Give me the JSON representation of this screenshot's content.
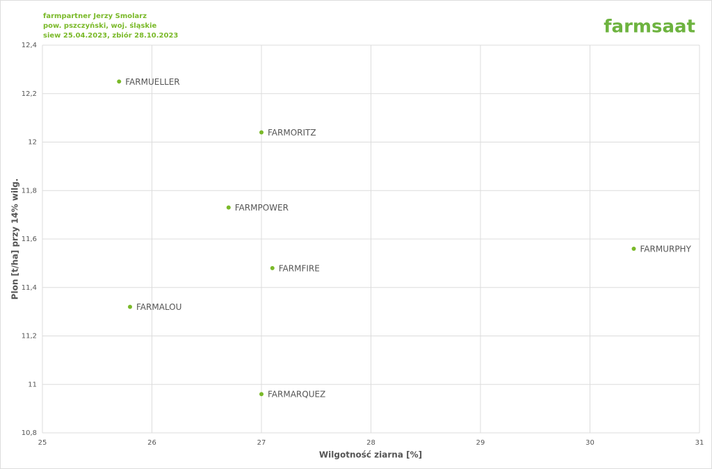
{
  "logo": "farmsaat",
  "chart_data": {
    "type": "scatter",
    "title_lines": [
      "farmpartner Jerzy Smolarz",
      "pow. pszczyński, woj. śląskie",
      "siew 25.04.2023, zbiór 28.10.2023"
    ],
    "x_label": "Wilgotność ziarna [%]",
    "y_label": "Plon [t/ha] przy 14% wilg.",
    "labels": [
      "FARMUELLER",
      "FARMORITZ",
      "FARMPOWER",
      "FARMURPHY",
      "FARMFIRE",
      "FARMALOU",
      "FARMARQUEZ"
    ],
    "x": [
      25.7,
      27.0,
      26.7,
      30.4,
      27.1,
      25.8,
      27.0
    ],
    "values": [
      12.25,
      12.04,
      11.73,
      11.56,
      11.48,
      11.32,
      10.96
    ],
    "color": "#7ab929",
    "xlim": [
      25,
      31
    ],
    "xticks": [
      25,
      26,
      27,
      28,
      29,
      30,
      31
    ],
    "ylim": [
      10.8,
      12.4
    ],
    "yticks": [
      {
        "value": 10.8,
        "label": "10,8"
      },
      11,
      {
        "value": 11.2,
        "label": "11,2"
      },
      {
        "value": 11.4,
        "label": "11,4"
      },
      {
        "value": 11.6,
        "label": "11,6"
      },
      {
        "value": 11.8,
        "label": "11,8"
      },
      12,
      {
        "value": 12.2,
        "label": "12,2"
      },
      {
        "value": 12.4,
        "label": "12,4"
      }
    ],
    "grid": true
  }
}
